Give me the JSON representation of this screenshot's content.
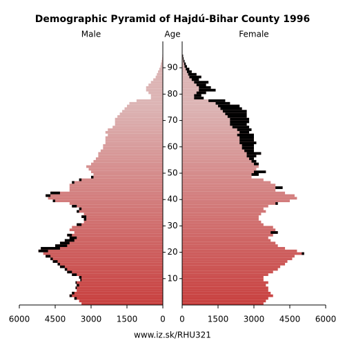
{
  "chart_data": {
    "type": "pyramid",
    "title": "Demographic Pyramid of Hajdú-Bihar County 1996",
    "left_label": "Male",
    "center_label": "Age",
    "right_label": "Female",
    "source": "www.iz.sk/RHU321",
    "x": [
      0,
      1,
      2,
      3,
      4,
      5,
      6,
      7,
      8,
      9,
      10,
      11,
      12,
      13,
      14,
      15,
      16,
      17,
      18,
      19,
      20,
      21,
      22,
      23,
      24,
      25,
      26,
      27,
      28,
      29,
      30,
      31,
      32,
      33,
      34,
      35,
      36,
      37,
      38,
      39,
      40,
      41,
      42,
      43,
      44,
      45,
      46,
      47,
      48,
      49,
      50,
      51,
      52,
      53,
      54,
      55,
      56,
      57,
      58,
      59,
      60,
      61,
      62,
      63,
      64,
      65,
      66,
      67,
      68,
      69,
      70,
      71,
      72,
      73,
      74,
      75,
      76,
      77,
      78,
      79,
      80,
      81,
      82,
      83,
      84,
      85,
      86,
      87,
      88,
      89,
      90,
      91,
      92,
      93,
      94
    ],
    "series": [
      {
        "name": "Male",
        "values": [
          3400,
          3500,
          3700,
          3900,
          3800,
          3600,
          3650,
          3600,
          3650,
          3450,
          3500,
          3800,
          4000,
          4100,
          4300,
          4400,
          4600,
          4700,
          4900,
          5000,
          5200,
          5100,
          4500,
          4300,
          4100,
          3900,
          4000,
          3700,
          3900,
          3800,
          3600,
          3300,
          3300,
          3400,
          3300,
          3600,
          3500,
          3800,
          3900,
          4600,
          4800,
          4900,
          4700,
          3900,
          3900,
          3900,
          3800,
          3500,
          3000,
          2900,
          3000,
          3100,
          3200,
          3000,
          2900,
          2800,
          2700,
          2700,
          2600,
          2500,
          2500,
          2400,
          2400,
          2400,
          2300,
          2400,
          2300,
          2100,
          2000,
          2000,
          2000,
          1900,
          1800,
          1700,
          1600,
          1500,
          1400,
          1100,
          500,
          500,
          600,
          700,
          700,
          600,
          500,
          400,
          300,
          250,
          200,
          150,
          100,
          80,
          50,
          30,
          20
        ]
      },
      {
        "name": "Female",
        "values": [
          3400,
          3500,
          3600,
          3800,
          3700,
          3600,
          3600,
          3500,
          3600,
          3400,
          3400,
          3600,
          3800,
          4000,
          4100,
          4300,
          4400,
          4600,
          4700,
          5100,
          4800,
          4300,
          4000,
          3900,
          3700,
          3600,
          3800,
          4000,
          3900,
          3800,
          3400,
          3300,
          3200,
          3200,
          3300,
          3500,
          3400,
          3600,
          4000,
          4500,
          4800,
          4700,
          4300,
          3900,
          4200,
          3900,
          3700,
          3400,
          2900,
          3200,
          3500,
          3100,
          3200,
          3200,
          3100,
          3000,
          3100,
          3300,
          3000,
          3000,
          3000,
          3100,
          3000,
          3000,
          3000,
          2800,
          2900,
          2800,
          2700,
          2800,
          2800,
          2700,
          2700,
          2700,
          2500,
          2400,
          2000,
          1800,
          900,
          800,
          1000,
          1400,
          1200,
          1000,
          1100,
          700,
          800,
          600,
          400,
          300,
          200,
          150,
          100,
          60,
          40
        ]
      }
    ],
    "color_young": "#c8403f",
    "color_old": "#dcb4b4",
    "excess_color": "#000000",
    "xlim": [
      0,
      6000
    ],
    "xticks": [
      0,
      1500,
      3000,
      4500,
      6000
    ],
    "ylim": [
      0,
      100
    ],
    "yticks": [
      10,
      20,
      30,
      40,
      50,
      60,
      70,
      80,
      90
    ]
  }
}
